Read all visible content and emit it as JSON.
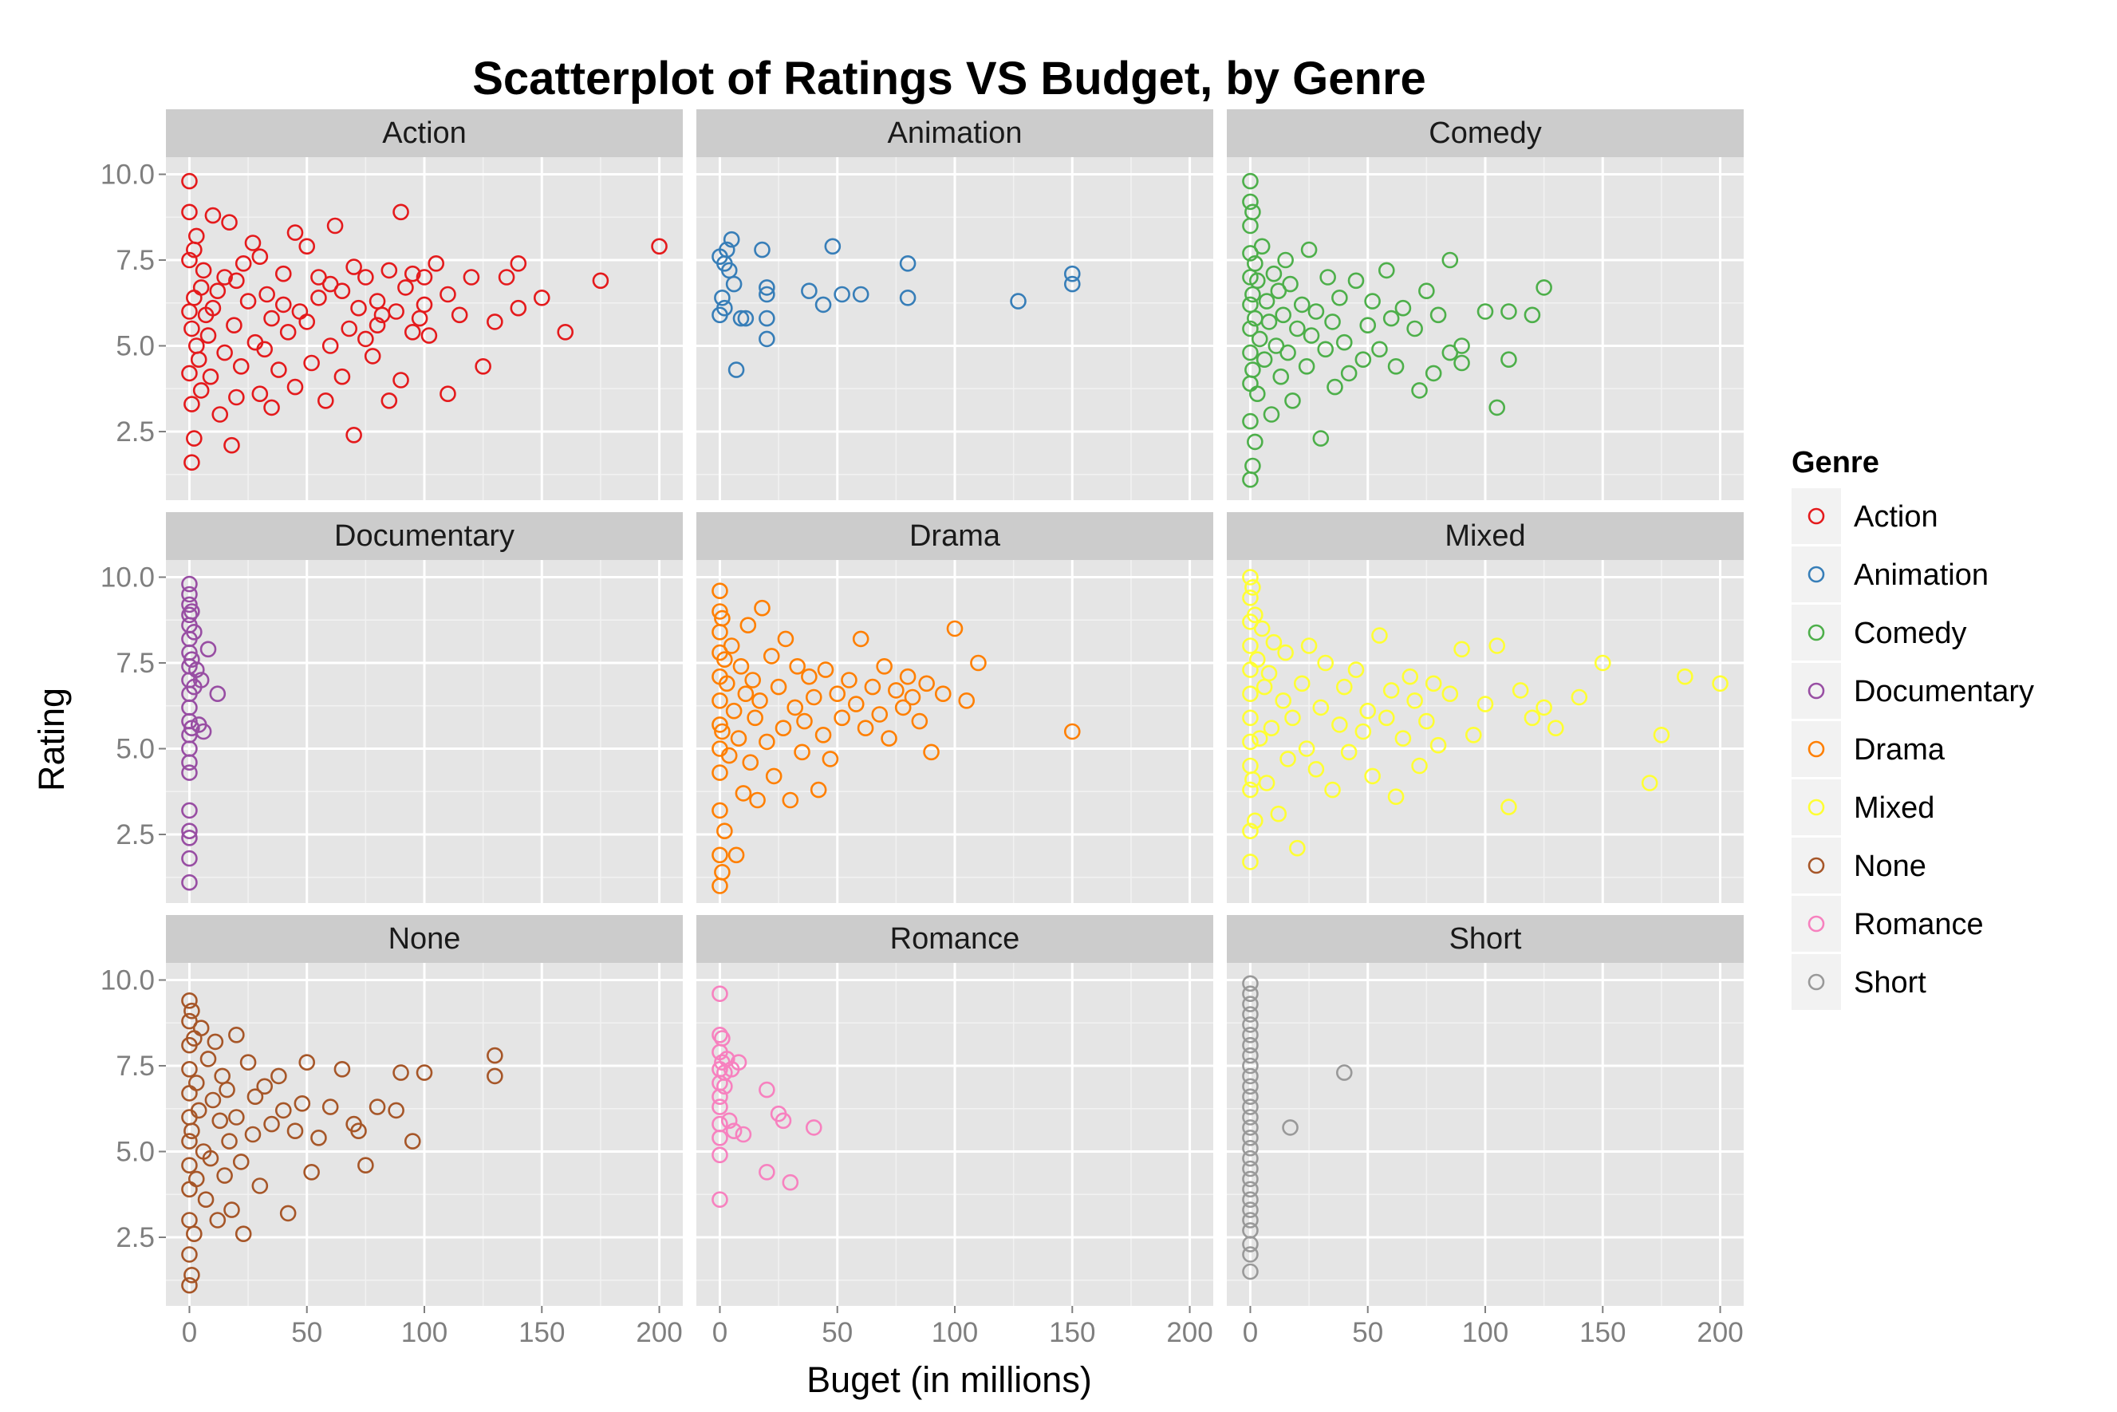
{
  "chart_data": {
    "type": "scatter",
    "title": "Scatterplot of Ratings VS Budget, by Genre",
    "xlabel": "Buget (in millions)",
    "ylabel": "Rating",
    "xlim": [
      -10,
      210
    ],
    "ylim": [
      0.5,
      10.5
    ],
    "x_ticks": [
      0,
      50,
      100,
      150,
      200
    ],
    "x_tick_labels": [
      "0",
      "50",
      "100",
      "150",
      "200"
    ],
    "y_ticks": [
      2.5,
      5.0,
      7.5,
      10.0
    ],
    "y_tick_labels": [
      "2.5",
      "5.0",
      "7.5",
      "10.0"
    ],
    "grid": true,
    "facet_layout": "3x3",
    "legend": {
      "title": "Genre",
      "position": "right"
    },
    "series": [
      {
        "name": "Action",
        "color": "#e41a1c",
        "x": [
          0,
          0,
          0,
          0,
          0,
          1,
          1,
          1,
          2,
          2,
          2,
          3,
          3,
          4,
          5,
          5,
          6,
          7,
          8,
          9,
          10,
          10,
          12,
          13,
          15,
          15,
          17,
          18,
          19,
          20,
          20,
          22,
          23,
          25,
          27,
          28,
          30,
          30,
          32,
          33,
          35,
          35,
          38,
          40,
          40,
          42,
          45,
          45,
          47,
          50,
          50,
          52,
          55,
          55,
          58,
          60,
          60,
          62,
          65,
          65,
          68,
          70,
          70,
          72,
          75,
          75,
          78,
          80,
          80,
          82,
          85,
          85,
          88,
          90,
          90,
          92,
          95,
          95,
          98,
          100,
          100,
          102,
          105,
          110,
          110,
          115,
          120,
          125,
          130,
          135,
          140,
          140,
          150,
          160,
          175,
          200
        ],
        "y": [
          9.8,
          8.9,
          7.5,
          6.0,
          4.2,
          5.5,
          3.3,
          1.6,
          7.8,
          6.4,
          2.3,
          5.0,
          8.2,
          4.6,
          6.7,
          3.7,
          7.2,
          5.9,
          5.3,
          4.1,
          8.8,
          6.1,
          6.6,
          3.0,
          4.8,
          7.0,
          8.6,
          2.1,
          5.6,
          6.9,
          3.5,
          4.4,
          7.4,
          6.3,
          8.0,
          5.1,
          3.6,
          7.6,
          4.9,
          6.5,
          5.8,
          3.2,
          4.3,
          6.2,
          7.1,
          5.4,
          8.3,
          3.8,
          6.0,
          5.7,
          7.9,
          4.5,
          6.4,
          7.0,
          3.4,
          5.0,
          6.8,
          8.5,
          6.6,
          4.1,
          5.5,
          7.3,
          2.4,
          6.1,
          5.2,
          7.0,
          4.7,
          6.3,
          5.6,
          5.9,
          7.2,
          3.4,
          6.0,
          8.9,
          4.0,
          6.7,
          5.4,
          7.1,
          5.8,
          7.0,
          6.2,
          5.3,
          7.4,
          3.6,
          6.5,
          5.9,
          7.0,
          4.4,
          5.7,
          7.0,
          6.1,
          7.4,
          6.4,
          5.4,
          6.9,
          7.9
        ]
      },
      {
        "name": "Animation",
        "color": "#377eb8",
        "x": [
          0,
          0,
          1,
          2,
          2,
          3,
          4,
          5,
          6,
          7,
          9,
          11,
          18,
          20,
          20,
          20,
          20,
          38,
          44,
          48,
          52,
          60,
          80,
          80,
          127,
          150,
          150
        ],
        "y": [
          5.9,
          7.6,
          6.4,
          7.4,
          6.1,
          7.8,
          7.2,
          8.1,
          6.8,
          4.3,
          5.8,
          5.8,
          7.8,
          6.7,
          5.8,
          5.2,
          6.5,
          6.6,
          6.2,
          7.9,
          6.5,
          6.5,
          7.4,
          6.4,
          6.3,
          6.8,
          7.1
        ]
      },
      {
        "name": "Comedy",
        "color": "#4daf4a",
        "x": [
          0,
          0,
          0,
          0,
          0,
          0,
          0,
          0,
          0,
          0,
          0,
          1,
          1,
          1,
          1,
          2,
          2,
          2,
          3,
          3,
          4,
          5,
          6,
          7,
          8,
          9,
          10,
          11,
          12,
          13,
          14,
          15,
          16,
          17,
          18,
          20,
          22,
          24,
          25,
          26,
          28,
          30,
          32,
          33,
          35,
          36,
          38,
          40,
          42,
          45,
          48,
          50,
          52,
          55,
          58,
          60,
          62,
          65,
          70,
          72,
          75,
          78,
          80,
          85,
          85,
          90,
          90,
          100,
          105,
          110,
          110,
          120,
          125
        ],
        "y": [
          9.8,
          9.2,
          8.5,
          7.7,
          7.0,
          6.2,
          5.5,
          4.8,
          3.9,
          2.8,
          1.1,
          8.9,
          6.5,
          4.3,
          1.5,
          7.4,
          5.8,
          2.2,
          6.9,
          3.6,
          5.2,
          7.9,
          4.6,
          6.3,
          5.7,
          3.0,
          7.1,
          5.0,
          6.6,
          4.1,
          5.9,
          7.5,
          4.8,
          6.8,
          3.4,
          5.5,
          6.2,
          4.4,
          7.8,
          5.3,
          6.0,
          2.3,
          4.9,
          7.0,
          5.7,
          3.8,
          6.4,
          5.1,
          4.2,
          6.9,
          4.6,
          5.6,
          6.3,
          4.9,
          7.2,
          5.8,
          4.4,
          6.1,
          5.5,
          3.7,
          6.6,
          4.2,
          5.9,
          4.8,
          7.5,
          5.0,
          4.5,
          6.0,
          3.2,
          6.0,
          4.6,
          5.9,
          6.7
        ]
      },
      {
        "name": "Documentary",
        "color": "#984ea3",
        "x": [
          0,
          0,
          0,
          0,
          0,
          0,
          0,
          0,
          0,
          0,
          0,
          0,
          0,
          0,
          0,
          0,
          0,
          0,
          0,
          0,
          0,
          1,
          1,
          1,
          2,
          2,
          3,
          4,
          5,
          6,
          8,
          12
        ],
        "y": [
          9.8,
          9.5,
          9.2,
          8.9,
          8.6,
          8.2,
          7.8,
          7.4,
          7.0,
          6.6,
          6.2,
          5.8,
          5.4,
          5.0,
          4.6,
          4.3,
          3.2,
          2.6,
          2.4,
          1.8,
          1.1,
          9.0,
          7.6,
          5.6,
          8.4,
          6.8,
          7.3,
          5.7,
          7.0,
          5.5,
          7.9,
          6.6
        ]
      },
      {
        "name": "Drama",
        "color": "#ff7f00",
        "x": [
          0,
          0,
          0,
          0,
          0,
          0,
          0,
          0,
          0,
          0,
          0,
          0,
          1,
          1,
          1,
          2,
          2,
          3,
          4,
          5,
          6,
          7,
          8,
          9,
          10,
          11,
          12,
          13,
          14,
          15,
          16,
          17,
          18,
          20,
          22,
          23,
          25,
          27,
          28,
          30,
          32,
          33,
          35,
          36,
          38,
          40,
          42,
          44,
          45,
          47,
          50,
          52,
          55,
          58,
          60,
          62,
          65,
          68,
          70,
          72,
          75,
          78,
          80,
          82,
          85,
          88,
          90,
          95,
          100,
          105,
          110,
          150
        ],
        "y": [
          9.6,
          9.0,
          8.4,
          7.8,
          7.1,
          6.4,
          5.7,
          5.0,
          4.3,
          3.2,
          1.9,
          1.0,
          8.8,
          5.5,
          1.4,
          7.6,
          2.6,
          6.9,
          4.8,
          8.0,
          6.1,
          1.9,
          5.3,
          7.4,
          3.7,
          6.6,
          8.6,
          4.6,
          7.0,
          5.9,
          3.5,
          6.4,
          9.1,
          5.2,
          7.7,
          4.2,
          6.8,
          5.6,
          8.2,
          3.5,
          6.2,
          7.4,
          4.9,
          5.8,
          7.1,
          6.5,
          3.8,
          5.4,
          7.3,
          4.7,
          6.6,
          5.9,
          7.0,
          6.3,
          8.2,
          5.6,
          6.8,
          6.0,
          7.4,
          5.3,
          6.7,
          6.2,
          7.1,
          6.5,
          5.8,
          6.9,
          4.9,
          6.6,
          8.5,
          6.4,
          7.5,
          5.5
        ]
      },
      {
        "name": "Mixed",
        "color": "#ffff33",
        "x": [
          0,
          0,
          0,
          0,
          0,
          0,
          0,
          0,
          0,
          0,
          0,
          0,
          1,
          1,
          2,
          2,
          3,
          4,
          5,
          6,
          7,
          8,
          9,
          10,
          12,
          14,
          15,
          16,
          18,
          20,
          22,
          24,
          25,
          28,
          30,
          32,
          35,
          38,
          40,
          42,
          45,
          48,
          50,
          52,
          55,
          58,
          60,
          62,
          65,
          68,
          70,
          72,
          75,
          78,
          80,
          85,
          90,
          95,
          100,
          105,
          110,
          115,
          120,
          125,
          130,
          140,
          150,
          170,
          175,
          185,
          200
        ],
        "y": [
          10.0,
          9.4,
          8.7,
          8.0,
          7.3,
          6.6,
          5.9,
          5.2,
          4.5,
          3.8,
          2.6,
          1.7,
          9.7,
          4.1,
          8.9,
          2.9,
          7.6,
          5.3,
          8.5,
          6.8,
          4.0,
          7.2,
          5.6,
          8.1,
          3.1,
          6.4,
          7.8,
          4.7,
          5.9,
          2.1,
          6.9,
          5.0,
          8.0,
          4.4,
          6.2,
          7.5,
          3.8,
          5.7,
          6.8,
          4.9,
          7.3,
          5.5,
          6.1,
          4.2,
          8.3,
          5.9,
          6.7,
          3.6,
          5.3,
          7.1,
          6.4,
          4.5,
          5.8,
          6.9,
          5.1,
          6.6,
          7.9,
          5.4,
          6.3,
          8.0,
          3.3,
          6.7,
          5.9,
          6.2,
          5.6,
          6.5,
          7.5,
          4.0,
          5.4,
          7.1,
          6.9
        ]
      },
      {
        "name": "None",
        "color": "#a65628",
        "x": [
          0,
          0,
          0,
          0,
          0,
          0,
          0,
          0,
          0,
          0,
          0,
          0,
          1,
          1,
          1,
          2,
          2,
          3,
          3,
          4,
          5,
          6,
          7,
          8,
          9,
          10,
          11,
          12,
          13,
          14,
          15,
          16,
          17,
          18,
          20,
          20,
          22,
          23,
          25,
          27,
          28,
          30,
          32,
          35,
          38,
          40,
          42,
          45,
          48,
          50,
          52,
          55,
          60,
          65,
          70,
          72,
          75,
          80,
          88,
          90,
          95,
          100,
          130,
          130
        ],
        "y": [
          9.4,
          8.8,
          8.1,
          7.4,
          6.7,
          6.0,
          5.3,
          4.6,
          3.9,
          3.0,
          2.0,
          1.1,
          9.1,
          5.6,
          1.4,
          8.3,
          2.6,
          7.0,
          4.2,
          6.2,
          8.6,
          5.0,
          3.6,
          7.7,
          4.8,
          6.5,
          8.2,
          3.0,
          5.9,
          7.2,
          4.3,
          6.8,
          5.3,
          3.3,
          8.4,
          6.0,
          4.7,
          2.6,
          7.6,
          5.5,
          6.6,
          4.0,
          6.9,
          5.8,
          7.2,
          6.2,
          3.2,
          5.6,
          6.4,
          7.6,
          4.4,
          5.4,
          6.3,
          7.4,
          5.8,
          5.6,
          4.6,
          6.3,
          6.2,
          7.3,
          5.3,
          7.3,
          7.8,
          7.2
        ]
      },
      {
        "name": "Romance",
        "color": "#f781bf",
        "x": [
          0,
          0,
          0,
          0,
          0,
          0,
          0,
          0,
          0,
          0,
          0,
          1,
          1,
          2,
          2,
          3,
          4,
          5,
          6,
          8,
          10,
          20,
          20,
          25,
          27,
          30,
          40
        ],
        "y": [
          9.6,
          8.4,
          7.9,
          7.4,
          7.0,
          6.6,
          6.3,
          5.8,
          5.4,
          4.9,
          3.6,
          8.3,
          7.6,
          7.3,
          6.9,
          7.7,
          5.9,
          7.4,
          5.6,
          7.6,
          5.5,
          6.8,
          4.4,
          6.1,
          5.9,
          4.1,
          5.7
        ]
      },
      {
        "name": "Short",
        "color": "#999999",
        "x": [
          0,
          0,
          0,
          0,
          0,
          0,
          0,
          0,
          0,
          0,
          0,
          0,
          0,
          0,
          0,
          0,
          0,
          0,
          0,
          0,
          0,
          0,
          0,
          0,
          0,
          0,
          0,
          0,
          17,
          40
        ],
        "y": [
          9.9,
          9.6,
          9.3,
          9.0,
          8.7,
          8.4,
          8.1,
          7.8,
          7.5,
          7.2,
          6.9,
          6.6,
          6.3,
          6.0,
          5.7,
          5.4,
          5.1,
          4.8,
          4.5,
          4.2,
          3.9,
          3.6,
          3.3,
          3.0,
          2.7,
          2.3,
          2.0,
          1.5,
          5.7,
          7.3
        ]
      }
    ]
  }
}
